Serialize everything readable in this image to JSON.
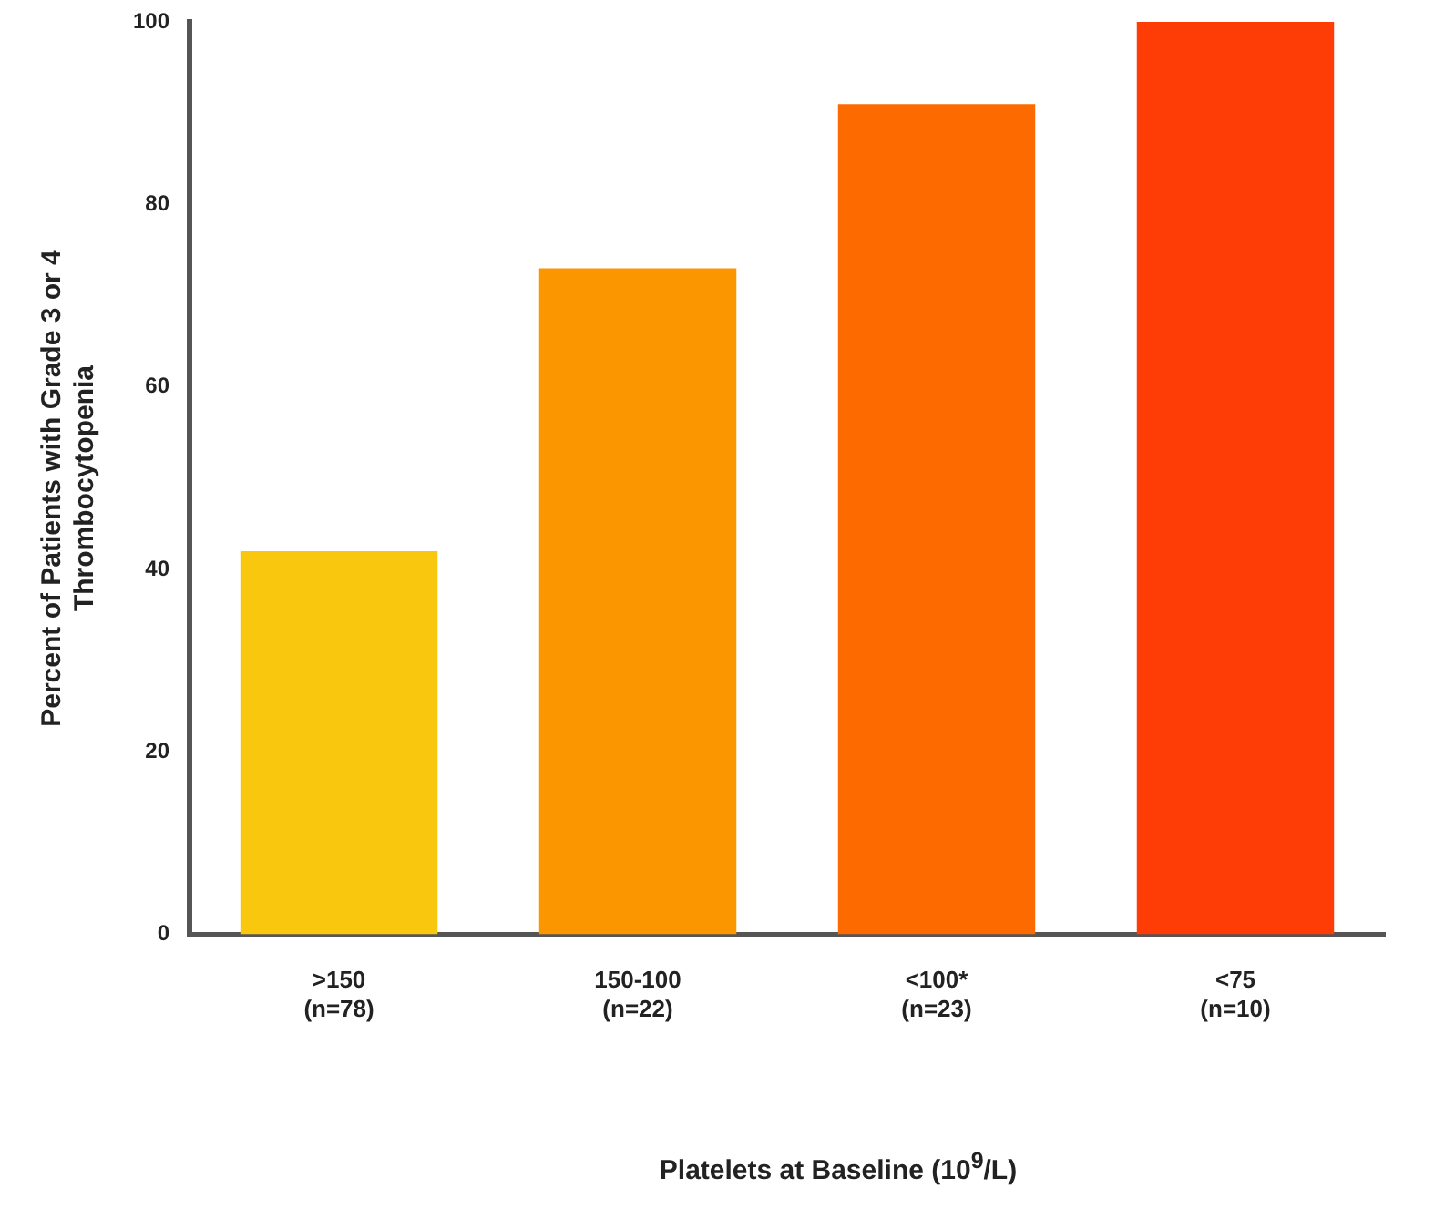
{
  "chart_data": {
    "type": "bar",
    "xlabel": "Platelets at Baseline (10$^{9}$/L)",
    "ylabel": "Percent of Patients with Grade 3 or 4 Thrombocytopenia",
    "categories": [
      ">150\n(n=78)",
      "150-100\n(n=22)",
      "<100*\n(n=23)",
      "<75\n(n=10)"
    ],
    "values": [
      42,
      73,
      91,
      100
    ],
    "colors": [
      "#f9c80e",
      "#fb9500",
      "#fd6a00",
      "#fe3d06"
    ],
    "ylim": [
      0,
      100
    ],
    "yticks": [
      0,
      20,
      40,
      60,
      80,
      100
    ],
    "grid": false,
    "legend": false
  }
}
